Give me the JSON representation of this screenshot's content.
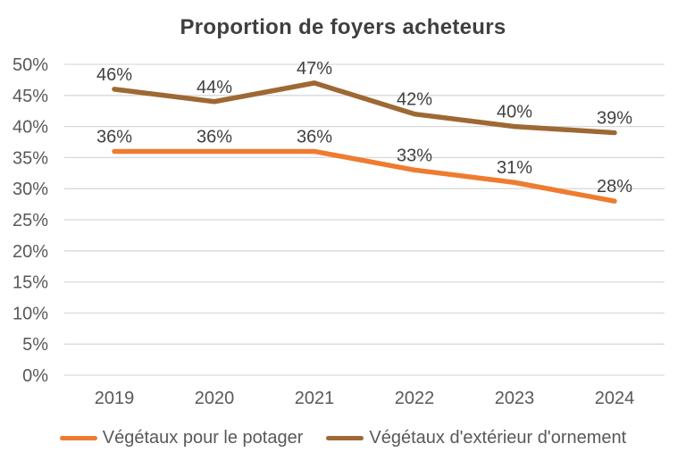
{
  "chart_data": {
    "type": "line",
    "title": "Proportion de foyers acheteurs",
    "categories": [
      "2019",
      "2020",
      "2021",
      "2022",
      "2023",
      "2024"
    ],
    "series": [
      {
        "name": "Végétaux pour le potager",
        "color": "#EE7C30",
        "values": [
          36,
          36,
          36,
          33,
          31,
          28
        ],
        "data_labels": [
          "36%",
          "36%",
          "36%",
          "33%",
          "31%",
          "28%"
        ]
      },
      {
        "name": "Végétaux d'extérieur d'ornement",
        "color": "#9E6834",
        "values": [
          46,
          44,
          47,
          42,
          40,
          39
        ],
        "data_labels": [
          "46%",
          "44%",
          "47%",
          "42%",
          "40%",
          "39%"
        ]
      }
    ],
    "xlabel": "",
    "ylabel": "",
    "ylim": [
      0,
      50
    ],
    "y_tick_step": 5,
    "y_ticks": [
      "0%",
      "5%",
      "10%",
      "15%",
      "20%",
      "25%",
      "30%",
      "35%",
      "40%",
      "45%",
      "50%"
    ],
    "grid": "horizontal",
    "gridline_color": "#D9D9D9",
    "legend_position": "bottom",
    "data_labels_shown": true,
    "text_colors": {
      "title": "#3F3F3F",
      "ticks": "#595959",
      "data_labels": "#404040",
      "legend": "#595959"
    }
  }
}
